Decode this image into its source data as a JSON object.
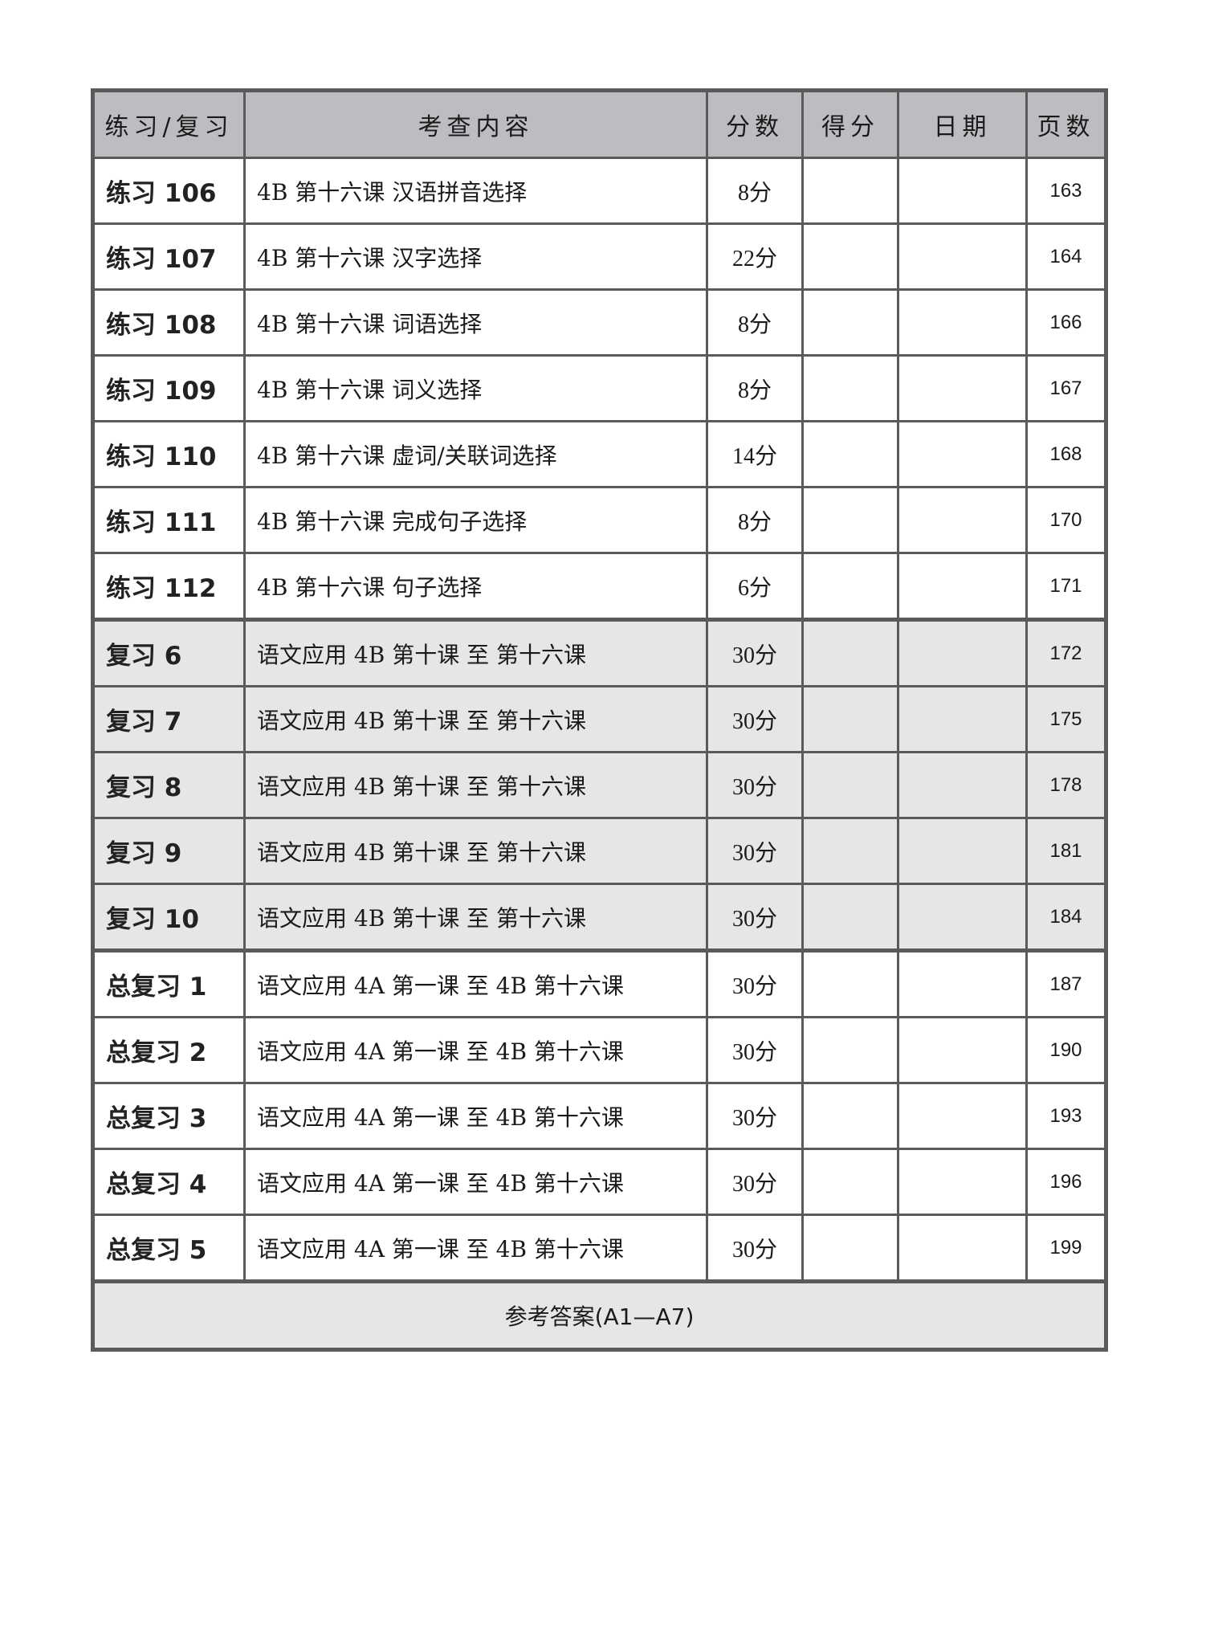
{
  "headers": [
    "练习/复习",
    "考查内容",
    "分数",
    "得分",
    "日期",
    "页数"
  ],
  "rows": [
    {
      "name": "练习 106",
      "content": "4B 第十六课 汉语拼音选择",
      "score": "8分",
      "page": "163",
      "group": "practice"
    },
    {
      "name": "练习 107",
      "content": "4B 第十六课 汉字选择",
      "score": "22分",
      "page": "164",
      "group": "practice"
    },
    {
      "name": "练习 108",
      "content": "4B 第十六课 词语选择",
      "score": "8分",
      "page": "166",
      "group": "practice"
    },
    {
      "name": "练习 109",
      "content": "4B 第十六课 词义选择",
      "score": "8分",
      "page": "167",
      "group": "practice"
    },
    {
      "name": "练习 110",
      "content": "4B 第十六课 虚词/关联词选择",
      "score": "14分",
      "page": "168",
      "group": "practice"
    },
    {
      "name": "练习 111",
      "content": "4B 第十六课 完成句子选择",
      "score": "8分",
      "page": "170",
      "group": "practice"
    },
    {
      "name": "练习 112",
      "content": "4B 第十六课 句子选择",
      "score": "6分",
      "page": "171",
      "group": "practice"
    },
    {
      "name": "复习 6",
      "content": "语文应用 4B 第十课 至 第十六课",
      "score": "30分",
      "page": "172",
      "group": "review"
    },
    {
      "name": "复习 7",
      "content": "语文应用 4B 第十课 至 第十六课",
      "score": "30分",
      "page": "175",
      "group": "review"
    },
    {
      "name": "复习 8",
      "content": "语文应用 4B 第十课 至 第十六课",
      "score": "30分",
      "page": "178",
      "group": "review"
    },
    {
      "name": "复习 9",
      "content": "语文应用 4B 第十课 至 第十六课",
      "score": "30分",
      "page": "181",
      "group": "review"
    },
    {
      "name": "复习 10",
      "content": "语文应用 4B 第十课 至 第十六课",
      "score": "30分",
      "page": "184",
      "group": "review"
    },
    {
      "name": "总复习 1",
      "content": "语文应用 4A 第一课 至 4B 第十六课",
      "score": "30分",
      "page": "187",
      "group": "final"
    },
    {
      "name": "总复习 2",
      "content": "语文应用 4A 第一课 至 4B 第十六课",
      "score": "30分",
      "page": "190",
      "group": "final"
    },
    {
      "name": "总复习 3",
      "content": "语文应用 4A 第一课 至 4B 第十六课",
      "score": "30分",
      "page": "193",
      "group": "final"
    },
    {
      "name": "总复习 4",
      "content": "语文应用 4A 第一课 至 4B 第十六课",
      "score": "30分",
      "page": "196",
      "group": "final"
    },
    {
      "name": "总复习 5",
      "content": "语文应用 4A 第一课 至 4B 第十六课",
      "score": "30分",
      "page": "199",
      "group": "final"
    }
  ],
  "answers_label": "参考答案(A1—A7)",
  "colors": {
    "header_bg": "#bdbdc1",
    "review_bg": "#e6e6e6",
    "border": "#5a5a5a"
  }
}
